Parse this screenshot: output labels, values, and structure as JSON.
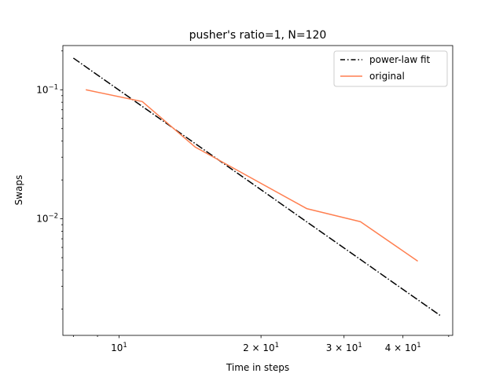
{
  "chart_data": {
    "type": "line",
    "title": "pusher's ratio=1, N=120",
    "xlabel": "Time in steps",
    "ylabel": "Swaps",
    "xscale": "log",
    "yscale": "log",
    "xlim": [
      7.6,
      51
    ],
    "ylim": [
      0.00125,
      0.22
    ],
    "grid": false,
    "legend_position": "top-right",
    "x_ticks": [
      {
        "value": 10,
        "base": "10",
        "exp": "1"
      },
      {
        "value": 20,
        "base": "2 × 10",
        "exp": "1"
      },
      {
        "value": 30,
        "base": "3 × 10",
        "exp": "1"
      },
      {
        "value": 40,
        "base": "4 × 10",
        "exp": "1"
      }
    ],
    "y_ticks": [
      {
        "value": 0.1,
        "base": "10",
        "exp": "−1"
      },
      {
        "value": 0.01,
        "base": "10",
        "exp": "−2"
      }
    ],
    "series": [
      {
        "name": "power-law fit",
        "style": "dashdot",
        "color": "#000000",
        "x": [
          8.0,
          48.0
        ],
        "y": [
          0.176,
          0.00178
        ]
      },
      {
        "name": "original",
        "style": "solid",
        "color": "#ff7f50",
        "x": [
          8.5,
          11.2,
          14.5,
          25.0,
          32.5,
          43.0
        ],
        "y": [
          0.1,
          0.081,
          0.036,
          0.012,
          0.0095,
          0.0047
        ]
      }
    ]
  }
}
